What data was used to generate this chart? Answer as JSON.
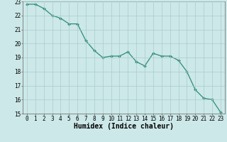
{
  "x": [
    0,
    1,
    2,
    3,
    4,
    5,
    6,
    7,
    8,
    9,
    10,
    11,
    12,
    13,
    14,
    15,
    16,
    17,
    18,
    19,
    20,
    21,
    22,
    23
  ],
  "y": [
    22.8,
    22.8,
    22.5,
    22.0,
    21.8,
    21.4,
    21.4,
    20.2,
    19.5,
    19.0,
    19.1,
    19.1,
    19.4,
    18.7,
    18.4,
    19.3,
    19.1,
    19.1,
    18.8,
    18.0,
    16.7,
    16.1,
    16.0,
    15.1
  ],
  "line_color": "#2e8b7a",
  "marker_color": "#2e8b7a",
  "bg_color": "#cce8e8",
  "grid_color": "#aacccc",
  "xlabel": "Humidex (Indice chaleur)",
  "ylim": [
    15,
    23
  ],
  "xlim_min": -0.5,
  "xlim_max": 23.5,
  "yticks": [
    15,
    16,
    17,
    18,
    19,
    20,
    21,
    22,
    23
  ],
  "xticks": [
    0,
    1,
    2,
    3,
    4,
    5,
    6,
    7,
    8,
    9,
    10,
    11,
    12,
    13,
    14,
    15,
    16,
    17,
    18,
    19,
    20,
    21,
    22,
    23
  ],
  "axis_fontsize": 6.5,
  "tick_fontsize": 5.5,
  "xlabel_fontsize": 7.0
}
